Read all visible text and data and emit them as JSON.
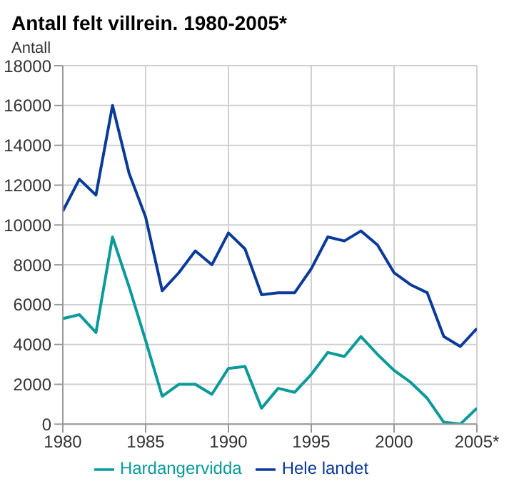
{
  "chart_data": {
    "type": "line",
    "title": "Antall felt villrein. 1980-2005*",
    "ylabel": "Antall",
    "x": [
      1980,
      1981,
      1982,
      1983,
      1984,
      1985,
      1986,
      1987,
      1988,
      1989,
      1990,
      1991,
      1992,
      1993,
      1994,
      1995,
      1996,
      1997,
      1998,
      1999,
      2000,
      2001,
      2002,
      2003,
      2004,
      2005
    ],
    "series": [
      {
        "name": "Hele landet",
        "color": "#0a3a9a",
        "values": [
          10700,
          12300,
          11500,
          16000,
          12600,
          10400,
          6700,
          7600,
          8700,
          8000,
          9600,
          8800,
          6500,
          6600,
          6600,
          7800,
          9400,
          9200,
          9700,
          9000,
          7600,
          7000,
          6600,
          4400,
          3900,
          4800
        ]
      },
      {
        "name": "Hardangervidda",
        "color": "#0a9a9a",
        "values": [
          5300,
          5500,
          4600,
          9400,
          6900,
          4200,
          1400,
          2000,
          2000,
          1500,
          2800,
          2900,
          800,
          1800,
          1600,
          2500,
          3600,
          3400,
          4400,
          3500,
          2700,
          2100,
          1300,
          100,
          0,
          800
        ]
      }
    ],
    "xlim": [
      1980,
      2005
    ],
    "xticks": [
      1980,
      1985,
      1990,
      1995,
      2000,
      {
        "value": 2005,
        "label": "2005*"
      }
    ],
    "ylim": [
      0,
      18000
    ],
    "yticks": [
      0,
      2000,
      4000,
      6000,
      8000,
      10000,
      12000,
      14000,
      16000,
      18000
    ],
    "grid": true,
    "legend": "bottom",
    "marker": "none",
    "line_style": "solid"
  }
}
